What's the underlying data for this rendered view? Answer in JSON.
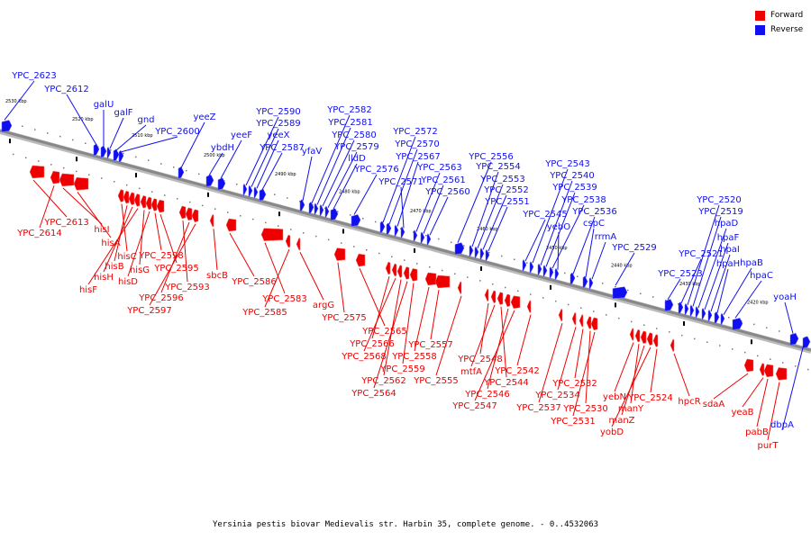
{
  "legend": {
    "forward_label": "Forward",
    "reverse_label": "Reverse",
    "forward_color": "#ee0000",
    "reverse_color": "#1010ee"
  },
  "caption": "Yersinia pestis biovar Medievalis str. Harbin 35, complete genome. - 0..4532063",
  "colors": {
    "forward": "#ee0000",
    "reverse": "#1010ee",
    "backbone": "#888888"
  },
  "scale_labels": [
    "2530 kbp",
    "2520 kbp",
    "2510 kbp",
    "2500 kbp",
    "2490 kbp",
    "2480 kbp",
    "2470 kbp",
    "2460 kbp",
    "2450 kbp",
    "2440 kbp",
    "2430 kbp",
    "2420 kbp"
  ],
  "reverse_genes": [
    "YPC_2623",
    "YPC_2612",
    "galU",
    "galF",
    "gnd",
    "YPC_2600",
    "yeeZ",
    "ybdH",
    "yeeF",
    "YPC_2590",
    "YPC_2589",
    "yeeX",
    "YPC_2587",
    "yfaV",
    "YPC_2582",
    "YPC_2581",
    "YPC_2580",
    "YPC_2579",
    "lldD",
    "YPC_2576",
    "YPC_2572",
    "YPC_2570",
    "YPC_2567",
    "YPC_2571",
    "YPC_2563",
    "YPC_2561",
    "YPC_2560",
    "YPC_2556",
    "YPC_2554",
    "YPC_2553",
    "YPC_2552",
    "YPC_2551",
    "YPC_2545",
    "YPC_2543",
    "YPC_2540",
    "YPC_2539",
    "YPC_2538",
    "yebO",
    "YPC_2536",
    "cspC",
    "rrmA",
    "YPC_2529",
    "YPC_2523",
    "YPC_2521",
    "YPC_2520",
    "YPC_2519",
    "hpaD",
    "hpaF",
    "hpaI",
    "hpaH",
    "hpaB",
    "hpaC",
    "yoaH",
    "dbpA"
  ],
  "forward_genes": [
    "YPC_2613",
    "YPC_2614",
    "hisI",
    "hisA",
    "hisC",
    "hisB",
    "hisH",
    "hisF",
    "hisG",
    "hisD",
    "YPC_2598",
    "YPC_2595",
    "YPC_2593",
    "YPC_2596",
    "YPC_2597",
    "sbcB",
    "YPC_2586",
    "YPC_2583",
    "YPC_2585",
    "argG",
    "YPC_2575",
    "YPC_2565",
    "YPC_2566",
    "YPC_2568",
    "YPC_2562",
    "YPC_2564",
    "YPC_2559",
    "YPC_2558",
    "YPC_2557",
    "YPC_2555",
    "YPC_2548",
    "mtfA",
    "YPC_2544",
    "YPC_2546",
    "YPC_2547",
    "YPC_2542",
    "YPC_2537",
    "YPC_2534",
    "YPC_2532",
    "YPC_2530",
    "YPC_2531",
    "yebN",
    "manY",
    "manZ",
    "yobD",
    "YPC_2524",
    "hpcR",
    "sdaA",
    "yeaB",
    "pabB",
    "purT"
  ]
}
